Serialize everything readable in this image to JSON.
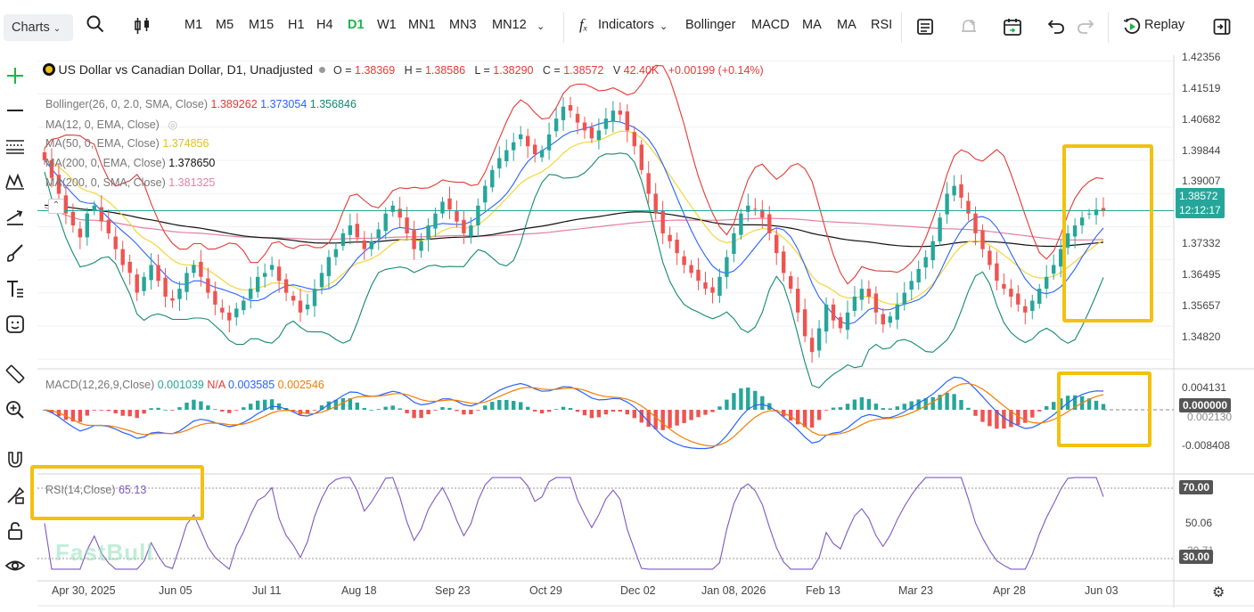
{
  "toolbar": {
    "charts": "Charts",
    "timeframes": [
      "M1",
      "M5",
      "M15",
      "H1",
      "H4",
      "D1",
      "W1",
      "MN1",
      "MN3",
      "MN12"
    ],
    "active_timeframe": "D1",
    "indicators": "Indicators",
    "quick": [
      "Bollinger",
      "MACD",
      "MA",
      "MA",
      "RSI"
    ],
    "replay": "Replay"
  },
  "legend": {
    "symbol": "US Dollar vs Canadian Dollar, D1, Unadjusted",
    "o_label": "O =",
    "o": "1.38369",
    "h_label": "H =",
    "h": "1.38586",
    "l_label": "L =",
    "l": "1.38290",
    "c_label": "C =",
    "c": "1.38572",
    "v_label": "V",
    "v": "42.40K",
    "chg": "+0.00199 (+0.14%)"
  },
  "overlays": {
    "boll_name": "Bollinger(26, 0, 2.0, SMA, Close)",
    "boll_up": "1.389262",
    "boll_mid": "1.373054",
    "boll_low": "1.356846",
    "ma1_name": "MA(12, 0, EMA, Close)",
    "ma2_name": "MA(50, 0, EMA, Close)",
    "ma2": "1.374856",
    "ma3_name": "MA(200, 0, EMA, Close)",
    "ma3": "1.378650",
    "ma4_name": "MA(200, 0, SMA, Close)",
    "ma4": "1.381325"
  },
  "price_axis": [
    "1.42356",
    "1.41519",
    "1.40682",
    "1.39844",
    "1.39007",
    "1.37332",
    "1.36495",
    "1.35657",
    "1.34820"
  ],
  "price_tag": {
    "price": "1.38572",
    "countdown": "12:12:17"
  },
  "macd": {
    "name": "MACD(12,26,9,Close)",
    "v1": "0.001039",
    "v2": "N/A",
    "v3": "0.003585",
    "v4": "0.002546",
    "axis": [
      "0.004131",
      "0.000000",
      "-0.008408"
    ],
    "axis_partial": "0.002130"
  },
  "rsi": {
    "name": "RSI(14,Close)",
    "value": "65.13",
    "axis": [
      "70.00",
      "50.06",
      "30.00"
    ],
    "axis_partial": "30.71"
  },
  "dates": [
    "Apr 30, 2025",
    "Jun 05",
    "Jul 11",
    "Aug 18",
    "Sep 23",
    "Oct 29",
    "Dec 02",
    "Jan 08, 2026",
    "Feb 13",
    "Mar 23",
    "Apr 28",
    "Jun 03"
  ],
  "watermark": "FastBull",
  "colors": {
    "up": "#26a69a",
    "down": "#ef5350",
    "boll_up": "#e53935",
    "boll_mid": "#2962ff",
    "boll_low": "#138a6e",
    "ma_yellow": "#f4d63a",
    "ma_black": "#111111",
    "ma_pink": "#e57fa0",
    "highlight": "#f2c10f",
    "rsi": "#7e57c2"
  },
  "chart_data": {
    "type": "candlestick",
    "symbol": "USDCAD",
    "ylim": [
      1.346,
      1.425
    ],
    "last_close": 1.38572,
    "rsi_last": 65.13,
    "rsi_levels": [
      70,
      30
    ],
    "closes": [
      1.3985,
      1.394,
      1.39,
      1.385,
      1.382,
      1.379,
      1.385,
      1.387,
      1.383,
      1.38,
      1.376,
      1.372,
      1.37,
      1.365,
      1.369,
      1.372,
      1.368,
      1.364,
      1.363,
      1.366,
      1.37,
      1.372,
      1.369,
      1.365,
      1.362,
      1.36,
      1.358,
      1.361,
      1.363,
      1.366,
      1.369,
      1.37,
      1.372,
      1.368,
      1.365,
      1.363,
      1.36,
      1.362,
      1.366,
      1.37,
      1.374,
      1.376,
      1.38,
      1.382,
      1.379,
      1.376,
      1.378,
      1.381,
      1.385,
      1.387,
      1.384,
      1.38,
      1.376,
      1.378,
      1.382,
      1.385,
      1.388,
      1.386,
      1.383,
      1.38,
      1.382,
      1.387,
      1.392,
      1.396,
      1.399,
      1.401,
      1.403,
      1.405,
      1.402,
      1.4,
      1.401,
      1.405,
      1.409,
      1.412,
      1.411,
      1.408,
      1.406,
      1.404,
      1.406,
      1.409,
      1.411,
      1.41,
      1.406,
      1.402,
      1.396,
      1.39,
      1.385,
      1.38,
      1.378,
      1.375,
      1.372,
      1.37,
      1.368,
      1.366,
      1.365,
      1.369,
      1.374,
      1.38,
      1.385,
      1.387,
      1.386,
      1.384,
      1.38,
      1.375,
      1.37,
      1.366,
      1.36,
      1.354,
      1.35,
      1.356,
      1.362,
      1.358,
      1.356,
      1.36,
      1.364,
      1.366,
      1.364,
      1.36,
      1.357,
      1.359,
      1.362,
      1.365,
      1.368,
      1.371,
      1.374,
      1.378,
      1.384,
      1.39,
      1.392,
      1.389,
      1.385,
      1.38,
      1.376,
      1.372,
      1.368,
      1.366,
      1.364,
      1.362,
      1.36,
      1.363,
      1.366,
      1.369,
      1.372,
      1.376,
      1.38,
      1.382,
      1.384,
      1.385,
      1.386,
      1.3857
    ]
  }
}
